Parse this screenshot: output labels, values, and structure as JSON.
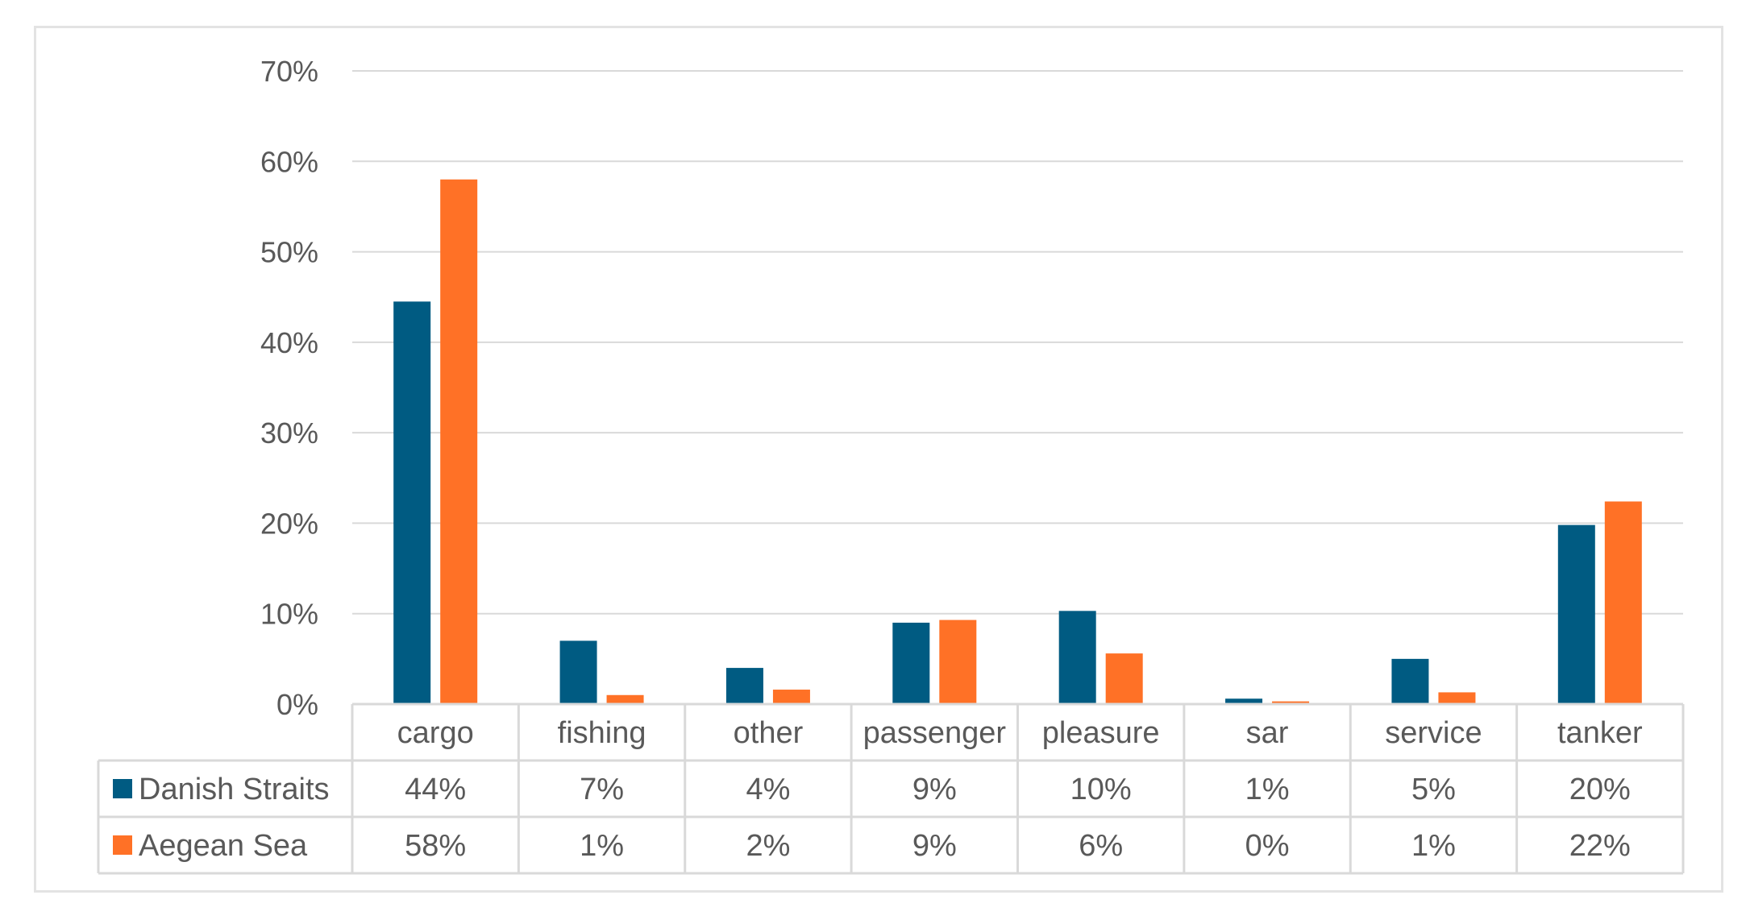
{
  "chart_data": {
    "type": "bar",
    "categories": [
      "cargo",
      "fishing",
      "other",
      "passenger",
      "pleasure",
      "sar",
      "service",
      "tanker"
    ],
    "series": [
      {
        "name": "Danish Straits",
        "color": "#005b82",
        "values": [
          44.5,
          7.0,
          4.0,
          9.0,
          10.3,
          0.6,
          5.0,
          19.8
        ],
        "labels": [
          "44%",
          "7%",
          "4%",
          "9%",
          "10%",
          "1%",
          "5%",
          "20%"
        ]
      },
      {
        "name": "Aegean Sea",
        "color": "#ff7126",
        "values": [
          58.0,
          1.0,
          1.6,
          9.3,
          5.6,
          0.3,
          1.3,
          22.4
        ],
        "labels": [
          "58%",
          "1%",
          "2%",
          "9%",
          "6%",
          "0%",
          "1%",
          "22%"
        ]
      }
    ],
    "ylim": [
      0,
      70
    ],
    "yticks": [
      "0%",
      "10%",
      "20%",
      "30%",
      "40%",
      "50%",
      "60%",
      "70%"
    ],
    "grid": true,
    "legend": "data table",
    "title": "",
    "xlabel": "",
    "ylabel": ""
  }
}
